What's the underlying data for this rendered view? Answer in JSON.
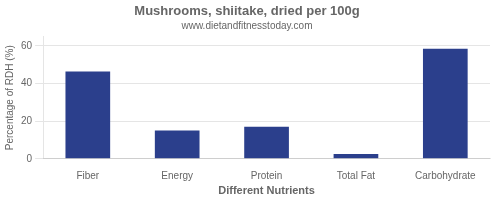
{
  "chart_data": {
    "type": "bar",
    "title": "Mushrooms, shiitake, dried per 100g",
    "subtitle": "www.dietandfitnesstoday.com",
    "categories": [
      "Fiber",
      "Energy",
      "Protein",
      "Total Fat",
      "Carbohydrate"
    ],
    "values": [
      46.5,
      15.0,
      17.0,
      2.5,
      58.5
    ],
    "color": "#2b3f8c",
    "xlabel": "Different Nutrients",
    "ylabel": "Percentage of RDH (%)",
    "ylim": [
      0,
      65
    ],
    "yticks": [
      0,
      20,
      40,
      60
    ],
    "grid": true
  }
}
